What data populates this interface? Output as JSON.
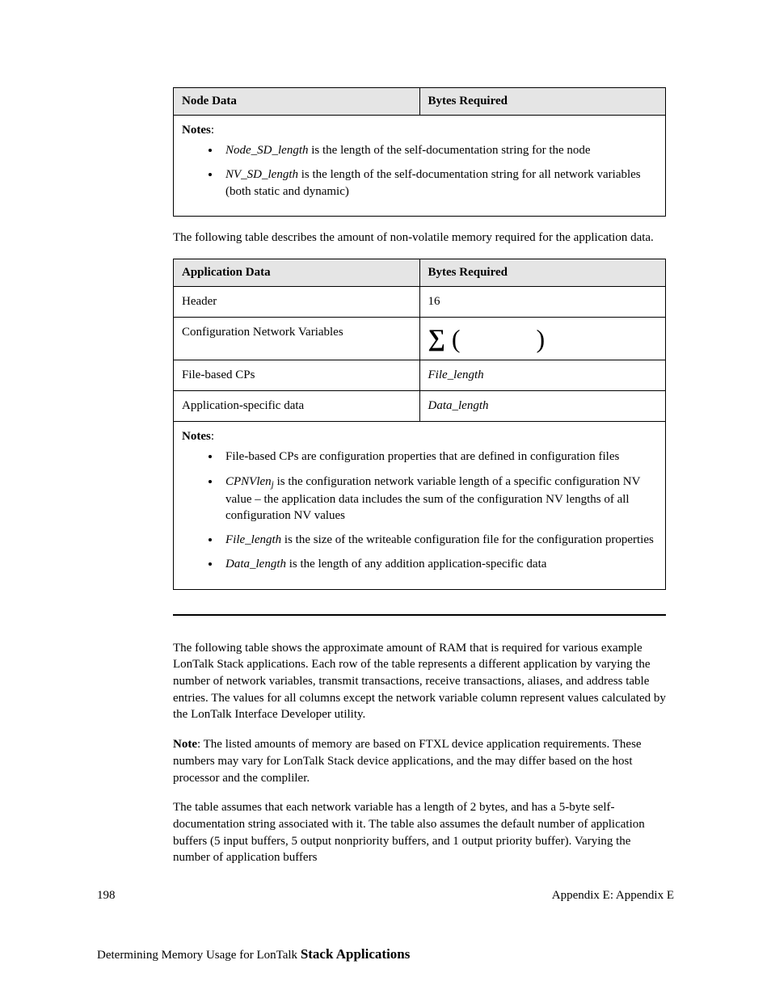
{
  "table1": {
    "headers": [
      "Node Data",
      "Bytes Required"
    ],
    "notesLabel": "Notes",
    "notes": [
      {
        "term": "Node_SD_length",
        "rest": " is the length of the self-documentation string for the node"
      },
      {
        "term": "NV_SD_length",
        "rest": " is the length of the self-documentation string for all network variables (both static and dynamic)"
      }
    ]
  },
  "para1": "The following table describes the amount of non-volatile memory required for the application data.",
  "table2": {
    "headers": [
      "Application Data",
      "Bytes Required"
    ],
    "rows": [
      {
        "label": "Header",
        "value": "16",
        "type": "text"
      },
      {
        "label": "Configuration Network Variables",
        "type": "sigma"
      },
      {
        "label": "File-based CPs",
        "value": "File_length",
        "type": "italic"
      },
      {
        "label": "Application-specific data",
        "value": "Data_length",
        "type": "italic"
      }
    ],
    "notesLabel": "Notes",
    "notes": [
      {
        "text": "File-based CPs are configuration properties that are defined in configuration files"
      },
      {
        "term": "CPNVlen",
        "sub": "j",
        "rest": " is the configuration network variable length of a specific configuration NV value – the application data includes the sum of the configuration NV lengths of all configuration NV values"
      },
      {
        "term": "File_length",
        "rest": " is the size of the writeable configuration file for the configuration properties"
      },
      {
        "term": "Data_length",
        "rest": " is the length of any addition application-specific data"
      }
    ]
  },
  "para2": "The following table shows the approximate amount of RAM that is required for various example LonTalk Stack applications.  Each row of the table represents a different application by varying the number of network variables, transmit transactions, receive transactions, aliases, and address table entries.  The values for all columns except the network variable column represent values calculated by the LonTalk Interface Developer utility.",
  "para3_bold": "Note",
  "para3_rest": ": The listed amounts of memory are based on FTXL device application requirements.  These numbers may vary for LonTalk Stack device applications, and the may differ based on the host processor and the compliler.",
  "para4": "The table assumes that each network variable has a length of 2 bytes, and has a 5-byte self-documentation string associated with it.  The table also assumes the default number of application buffers (5 input buffers, 5 output nonpriority buffers, and 1 output priority buffer).  Varying the number of application buffers",
  "footer": {
    "pageNum": "198",
    "appendix": "Appendix E: Appendix E"
  },
  "bottomTitle": {
    "pre": "Determining Memory Usage for LonTalk ",
    "bold": "Stack Applications"
  }
}
